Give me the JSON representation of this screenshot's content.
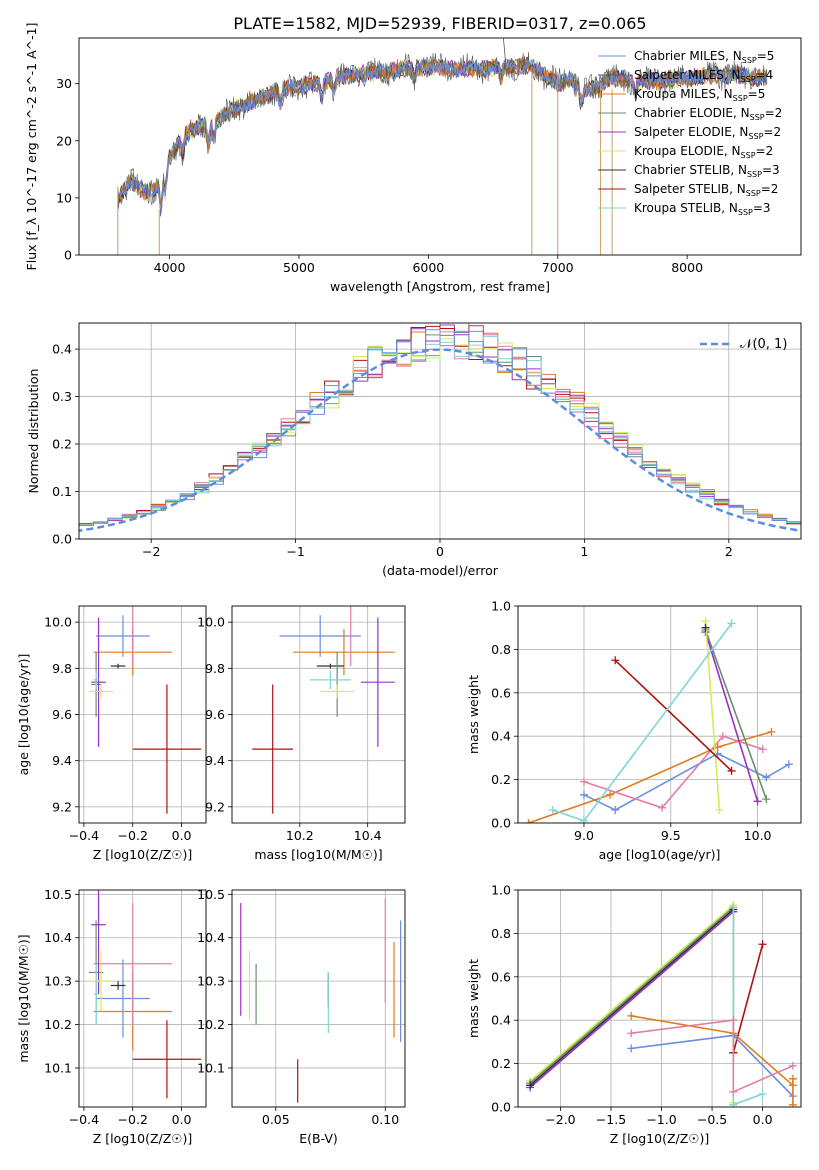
{
  "figure_title": "PLATE=1582, MJD=52939, FIBERID=0317, z=0.065",
  "colors": {
    "Chabrier MILES": "#6a8ee0",
    "Salpeter MILES": "#555555",
    "Kroupa MILES": "#e07b1e",
    "Chabrier ELODIE": "#6b8f6b",
    "Salpeter ELODIE": "#9b30c8",
    "Kroupa ELODIE": "#d4ec5a",
    "Chabrier STELIB": "#333333",
    "Salpeter STELIB": "#b01010",
    "Kroupa STELIB": "#7ed6d6",
    "pink": "#e57ca8",
    "gauss": "#5b8ee0"
  },
  "chart_data": [
    {
      "id": "spectrum",
      "type": "line",
      "title": "PLATE=1582, MJD=52939, FIBERID=0317, z=0.065",
      "xlabel": "wavelength [Angstrom, rest frame]",
      "ylabel": "Flux [f_λ 10^-17 erg cm^-2 s^-1 A^-1]",
      "xlim": [
        3300,
        8880
      ],
      "ylim": [
        0,
        38
      ],
      "xticks": [
        4000,
        5000,
        6000,
        7000,
        8000
      ],
      "yticks": [
        0,
        10,
        20,
        30
      ],
      "legend_position": "top-right",
      "series": [
        {
          "name": "Chabrier MILES, N_SSP=5",
          "color": "#6a8ee0"
        },
        {
          "name": "Salpeter MILES, N_SSP=4",
          "color": "#555555"
        },
        {
          "name": "Kroupa MILES, N_SSP=5",
          "color": "#e07b1e"
        },
        {
          "name": "Chabrier ELODIE, N_SSP=2",
          "color": "#6b8f6b"
        },
        {
          "name": "Salpeter ELODIE, N_SSP=2",
          "color": "#9b30c8"
        },
        {
          "name": "Kroupa ELODIE, N_SSP=2",
          "color": "#d4ec5a"
        },
        {
          "name": "Chabrier STELIB, N_SSP=3",
          "color": "#333333"
        },
        {
          "name": "Salpeter STELIB, N_SSP=2",
          "color": "#b01010"
        },
        {
          "name": "Kroupa STELIB, N_SSP=3",
          "color": "#7ed6d6"
        }
      ],
      "continuum": {
        "x": [
          3600,
          3700,
          3800,
          3900,
          3950,
          4000,
          4100,
          4200,
          4300,
          4400,
          4500,
          4600,
          4700,
          4800,
          4900,
          5000,
          5200,
          5400,
          5600,
          5800,
          6000,
          6200,
          6400,
          6600,
          6800,
          6900,
          7000,
          7100,
          7200,
          7300,
          7400,
          7600,
          7800,
          8000,
          8200,
          8400,
          8600
        ],
        "y": [
          10,
          13,
          11,
          12,
          14,
          17,
          21,
          22,
          23,
          24,
          25.5,
          26.5,
          27.5,
          28.5,
          29,
          29.5,
          30.5,
          31.5,
          32,
          32.5,
          33,
          32.5,
          32.5,
          33,
          33,
          31.5,
          30,
          31,
          28.5,
          29.5,
          31,
          30.5,
          30.5,
          31,
          31.5,
          31.5,
          31
        ]
      }
    },
    {
      "id": "residuals",
      "type": "line",
      "xlabel": "(data-model)/error",
      "ylabel": "Normed distribution",
      "xlim": [
        -2.5,
        2.5
      ],
      "ylim": [
        0,
        0.455
      ],
      "xticks": [
        -2,
        -1,
        0,
        1,
        2
      ],
      "yticks": [
        0.0,
        0.1,
        0.2,
        0.3,
        0.4
      ],
      "legend": "𝒩(0, 1)",
      "legend_position": "top-right",
      "bin_width": 0.1,
      "series": [
        {
          "color": "#e07b1e",
          "seed": 1
        },
        {
          "color": "#9b30c8",
          "seed": 2
        },
        {
          "color": "#b01010",
          "seed": 3
        },
        {
          "color": "#e57ca8",
          "seed": 4
        },
        {
          "color": "#6b8f6b",
          "seed": 5
        },
        {
          "color": "#d4ec5a",
          "seed": 6
        },
        {
          "color": "#7ed6d6",
          "seed": 7
        },
        {
          "color": "#6a8ee0",
          "seed": 8
        }
      ]
    },
    {
      "id": "age_vs_Z",
      "type": "scatter",
      "xlabel": "Z [log10(Z/Z☉)]",
      "ylabel": "age [log10(age/yr)]",
      "xlim": [
        -0.42,
        0.1
      ],
      "ylim": [
        9.13,
        10.07
      ],
      "xticks": [
        -0.4,
        -0.2,
        0.0
      ],
      "yticks": [
        9.2,
        9.4,
        9.6,
        9.8,
        10.0
      ],
      "points": [
        {
          "x": -0.24,
          "y": 9.94,
          "xerr": 0.11,
          "yerr": 0.09,
          "color": "#6a8ee0"
        },
        {
          "x": -0.2,
          "y": 9.87,
          "xerr": 0.16,
          "yerr": 0.1,
          "color": "#e07b1e"
        },
        {
          "x": -0.2,
          "y": 9.94,
          "xerr": 0.0,
          "yerr": 0.13,
          "color": "#e57ca8"
        },
        {
          "x": -0.26,
          "y": 9.81,
          "xerr": 0.03,
          "yerr": 0.01,
          "color": "#333333"
        },
        {
          "x": -0.35,
          "y": 9.73,
          "xerr": 0.02,
          "yerr": 0.14,
          "color": "#6b8f6b"
        },
        {
          "x": -0.34,
          "y": 9.74,
          "xerr": 0.03,
          "yerr": 0.28,
          "color": "#9b30c8"
        },
        {
          "x": -0.33,
          "y": 9.7,
          "xerr": 0.05,
          "yerr": 0.03,
          "color": "#d4ec5a"
        },
        {
          "x": -0.35,
          "y": 9.75,
          "xerr": 0.01,
          "yerr": 0.04,
          "color": "#7ed6d6"
        },
        {
          "x": -0.06,
          "y": 9.45,
          "xerr": 0.14,
          "yerr": 0.28,
          "color": "#b01010"
        }
      ]
    },
    {
      "id": "age_vs_mass",
      "type": "scatter",
      "xlabel": "mass [log10(M/M☉)]",
      "ylabel": "",
      "xlim": [
        10.0,
        10.51
      ],
      "ylim": [
        9.13,
        10.07
      ],
      "xticks": [
        10.2,
        10.4
      ],
      "yticks": [
        9.2,
        9.4,
        9.6,
        9.8,
        10.0
      ],
      "points": [
        {
          "x": 10.26,
          "y": 9.94,
          "xerr": 0.12,
          "yerr": 0.09,
          "color": "#6a8ee0"
        },
        {
          "x": 10.33,
          "y": 9.87,
          "xerr": 0.15,
          "yerr": 0.1,
          "color": "#e07b1e"
        },
        {
          "x": 10.35,
          "y": 9.94,
          "xerr": 0.0,
          "yerr": 0.13,
          "color": "#e57ca8"
        },
        {
          "x": 10.29,
          "y": 9.81,
          "xerr": 0.04,
          "yerr": 0.01,
          "color": "#333333"
        },
        {
          "x": 10.31,
          "y": 9.73,
          "xerr": 0.0,
          "yerr": 0.14,
          "color": "#6b8f6b"
        },
        {
          "x": 10.43,
          "y": 9.74,
          "xerr": 0.05,
          "yerr": 0.28,
          "color": "#9b30c8"
        },
        {
          "x": 10.31,
          "y": 9.7,
          "xerr": 0.05,
          "yerr": 0.03,
          "color": "#d4ec5a"
        },
        {
          "x": 10.29,
          "y": 9.75,
          "xerr": 0.06,
          "yerr": 0.04,
          "color": "#7ed6d6"
        },
        {
          "x": 10.12,
          "y": 9.45,
          "xerr": 0.06,
          "yerr": 0.28,
          "color": "#b01010"
        }
      ]
    },
    {
      "id": "weight_vs_age",
      "type": "line",
      "xlabel": "age [log10(age/yr)]",
      "ylabel": "mass weight",
      "xlim": [
        8.62,
        10.25
      ],
      "ylim": [
        0,
        1
      ],
      "xticks": [
        9.0,
        9.5,
        10.0
      ],
      "yticks": [
        0.0,
        0.2,
        0.4,
        0.6,
        0.8,
        1.0
      ],
      "series": [
        {
          "color": "#6a8ee0",
          "x": [
            9.0,
            9.18,
            9.77,
            10.05,
            10.18
          ],
          "y": [
            0.13,
            0.06,
            0.32,
            0.21,
            0.27
          ]
        },
        {
          "color": "#e07b1e",
          "x": [
            8.68,
            9.15,
            9.77,
            10.08
          ],
          "y": [
            0.0,
            0.13,
            0.35,
            0.42
          ]
        },
        {
          "color": "#e57ca8",
          "x": [
            9.0,
            9.45,
            9.8,
            10.03
          ],
          "y": [
            0.19,
            0.07,
            0.4,
            0.34
          ]
        },
        {
          "color": "#6b8f6b",
          "x": [
            9.7,
            10.05
          ],
          "y": [
            0.89,
            0.11
          ]
        },
        {
          "color": "#9b30c8",
          "x": [
            9.7,
            10.0
          ],
          "y": [
            0.88,
            0.1
          ]
        },
        {
          "color": "#d4ec5a",
          "x": [
            9.7,
            9.78
          ],
          "y": [
            0.93,
            0.06
          ]
        },
        {
          "color": "#b01010",
          "x": [
            9.18,
            9.85
          ],
          "y": [
            0.75,
            0.24
          ]
        },
        {
          "color": "#333333",
          "x": [
            9.7
          ],
          "y": [
            0.9
          ]
        },
        {
          "color": "#7ed6d6",
          "x": [
            8.82,
            9.0,
            9.85
          ],
          "y": [
            0.06,
            0.01,
            0.92
          ]
        }
      ]
    },
    {
      "id": "mass_vs_Z",
      "type": "scatter",
      "xlabel": "Z [log10(Z/Z☉)]",
      "ylabel": "mass [log10(M/M☉)]",
      "xlim": [
        -0.42,
        0.1
      ],
      "ylim": [
        10.01,
        10.51
      ],
      "xticks": [
        -0.4,
        -0.2,
        0.0
      ],
      "yticks": [
        10.1,
        10.2,
        10.3,
        10.4,
        10.5
      ],
      "points": [
        {
          "x": -0.24,
          "y": 10.26,
          "xerr": 0.11,
          "yerr": 0.09,
          "color": "#6a8ee0"
        },
        {
          "x": -0.2,
          "y": 10.23,
          "xerr": 0.16,
          "yerr": 0.09,
          "color": "#e07b1e"
        },
        {
          "x": -0.2,
          "y": 10.34,
          "xerr": 0.16,
          "yerr": 0.14,
          "color": "#e57ca8"
        },
        {
          "x": -0.26,
          "y": 10.29,
          "xerr": 0.03,
          "yerr": 0.01,
          "color": "#333333"
        },
        {
          "x": -0.35,
          "y": 10.32,
          "xerr": 0.03,
          "yerr": 0.12,
          "color": "#6b8f6b"
        },
        {
          "x": -0.34,
          "y": 10.43,
          "xerr": 0.03,
          "yerr": 0.16,
          "color": "#9b30c8"
        },
        {
          "x": -0.33,
          "y": 10.3,
          "xerr": 0.04,
          "yerr": 0.07,
          "color": "#d4ec5a"
        },
        {
          "x": -0.35,
          "y": 10.27,
          "xerr": 0.01,
          "yerr": 0.07,
          "color": "#7ed6d6"
        },
        {
          "x": -0.06,
          "y": 10.12,
          "xerr": 0.14,
          "yerr": 0.09,
          "color": "#b01010"
        }
      ]
    },
    {
      "id": "mass_vs_EBV",
      "type": "scatter",
      "xlabel": "E(B-V)",
      "ylabel": "",
      "xlim": [
        0.03,
        0.109
      ],
      "ylim": [
        10.01,
        10.51
      ],
      "xticks": [
        0.05,
        0.1
      ],
      "yticks": [
        10.1,
        10.2,
        10.3,
        10.4,
        10.5
      ],
      "points": [
        {
          "x": 0.107,
          "y": 10.3,
          "yerr": 0.14,
          "color": "#6a8ee0"
        },
        {
          "x": 0.104,
          "y": 10.28,
          "yerr": 0.11,
          "color": "#e07b1e"
        },
        {
          "x": 0.1,
          "y": 10.37,
          "yerr": 0.12,
          "color": "#e57ca8"
        },
        {
          "x": 0.074,
          "y": 10.28,
          "yerr": 0.04,
          "color": "#333333"
        },
        {
          "x": 0.041,
          "y": 10.27,
          "yerr": 0.07,
          "color": "#6b8f6b"
        },
        {
          "x": 0.034,
          "y": 10.35,
          "yerr": 0.13,
          "color": "#9b30c8"
        },
        {
          "x": 0.038,
          "y": 10.29,
          "yerr": 0.08,
          "color": "#d4ec5a"
        },
        {
          "x": 0.074,
          "y": 10.25,
          "yerr": 0.07,
          "color": "#7ed6d6"
        },
        {
          "x": 0.06,
          "y": 10.07,
          "yerr": 0.05,
          "color": "#b01010"
        }
      ]
    },
    {
      "id": "weight_vs_Z",
      "type": "line",
      "xlabel": "Z [log10(Z/Z☉)]",
      "ylabel": "mass weight",
      "xlim": [
        -2.42,
        0.38
      ],
      "ylim": [
        0,
        1
      ],
      "xticks": [
        -2.0,
        -1.5,
        -1.0,
        -0.5,
        0.0
      ],
      "yticks": [
        0.0,
        0.2,
        0.4,
        0.6,
        0.8,
        1.0
      ],
      "series": [
        {
          "color": "#d4ec5a",
          "x": [
            -2.3,
            -0.29,
            -0.29
          ],
          "y": [
            0.12,
            0.93,
            0.02
          ]
        },
        {
          "color": "#6b8f6b",
          "x": [
            -2.3,
            -0.29
          ],
          "y": [
            0.11,
            0.92
          ]
        },
        {
          "color": "#9b30c8",
          "x": [
            -2.3,
            -0.29
          ],
          "y": [
            0.09,
            0.9
          ]
        },
        {
          "color": "#333333",
          "x": [
            -2.3,
            -0.29,
            -0.29
          ],
          "y": [
            0.1,
            0.91,
            0.25
          ]
        },
        {
          "color": "#7ed6d6",
          "x": [
            -0.29,
            -0.29,
            0.0
          ],
          "y": [
            0.92,
            0.01,
            0.06
          ]
        },
        {
          "color": "#b01010",
          "x": [
            -0.29,
            0.0
          ],
          "y": [
            0.25,
            0.75
          ]
        },
        {
          "color": "#e07b1e",
          "x": [
            -1.3,
            -0.29,
            0.3
          ],
          "y": [
            0.42,
            0.34,
            0.1
          ]
        },
        {
          "color": "#6a8ee0",
          "x": [
            -1.3,
            -0.29,
            0.3
          ],
          "y": [
            0.27,
            0.33,
            0.05
          ]
        },
        {
          "color": "#e57ca8",
          "x": [
            -1.3,
            -0.29,
            -0.29,
            0.3
          ],
          "y": [
            0.34,
            0.4,
            0.07,
            0.19
          ]
        },
        {
          "color": "#e07b1e",
          "x": [
            0.3,
            0.3
          ],
          "y": [
            0.13,
            0.01
          ]
        }
      ]
    }
  ]
}
